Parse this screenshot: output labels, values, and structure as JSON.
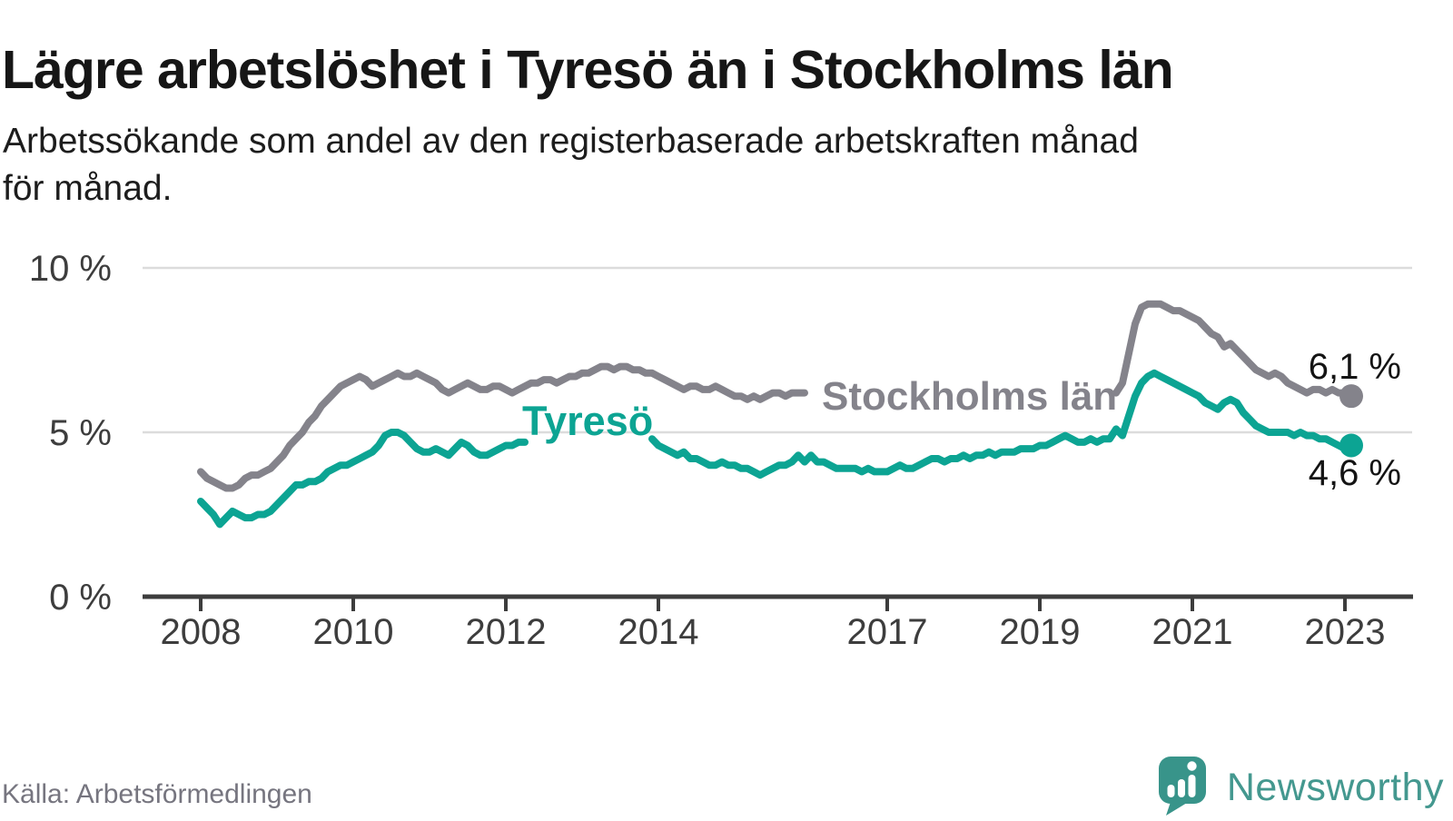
{
  "header": {
    "title": "Lägre arbetslöshet i Tyresö än i Stockholms län",
    "subtitle_line1": "Arbetssökande som andel av den registerbaserade arbetskraften månad",
    "subtitle_line2": "för månad."
  },
  "footer": {
    "source": "Källa: Arbetsförmedlingen",
    "brand_name": "Newsworthy",
    "brand_color": "#44988f",
    "brand_icon": "speech-bubble-bar-chart-icon"
  },
  "colors": {
    "background": "#ffffff",
    "axis": "#3d3d3d",
    "gridline": "#dcdcdc",
    "stockholm_line": "#84838b",
    "tyreso_line": "#0ca493",
    "value_label": "#141414"
  },
  "chart_data": {
    "type": "line",
    "title": "Lägre arbetslöshet i Tyresö än i Stockholms län",
    "xlabel": "",
    "ylabel": "Arbetssökande som andel av den registerbaserade arbetskraften",
    "x_unit": "month",
    "x_start": "2008-01",
    "x_end": "2023-02",
    "ylim": [
      0,
      10.5
    ],
    "grid": "horizontal",
    "legend_position": "inline-labels-on-lines",
    "yticks": [
      {
        "value": 0,
        "label": "0 %"
      },
      {
        "value": 5,
        "label": "5 %"
      },
      {
        "value": 10,
        "label": "10 %"
      }
    ],
    "xticks": [
      {
        "year": 2008,
        "label": "2008"
      },
      {
        "year": 2010,
        "label": "2010"
      },
      {
        "year": 2012,
        "label": "2012"
      },
      {
        "year": 2014,
        "label": "2014"
      },
      {
        "year": 2017,
        "label": "2017"
      },
      {
        "year": 2019,
        "label": "2019"
      },
      {
        "year": 2021,
        "label": "2021"
      },
      {
        "year": 2023,
        "label": "2023"
      }
    ],
    "note": "null values mark segments hidden behind the inline series labels in the original graphic",
    "series": [
      {
        "name": "Stockholms län",
        "color": "#84838b",
        "end_label": "6,1 %",
        "end_value": 6.1,
        "values": [
          3.8,
          3.6,
          3.5,
          3.4,
          3.3,
          3.3,
          3.4,
          3.6,
          3.7,
          3.7,
          3.8,
          3.9,
          4.1,
          4.3,
          4.6,
          4.8,
          5.0,
          5.3,
          5.5,
          5.8,
          6.0,
          6.2,
          6.4,
          6.5,
          6.6,
          6.7,
          6.6,
          6.4,
          6.5,
          6.6,
          6.7,
          6.8,
          6.7,
          6.7,
          6.8,
          6.7,
          6.6,
          6.5,
          6.3,
          6.2,
          6.3,
          6.4,
          6.5,
          6.4,
          6.3,
          6.3,
          6.4,
          6.4,
          6.3,
          6.2,
          6.3,
          6.4,
          6.5,
          6.5,
          6.6,
          6.6,
          6.5,
          6.6,
          6.7,
          6.7,
          6.8,
          6.8,
          6.9,
          7.0,
          7.0,
          6.9,
          7.0,
          7.0,
          6.9,
          6.9,
          6.8,
          6.8,
          6.7,
          6.6,
          6.5,
          6.4,
          6.3,
          6.4,
          6.4,
          6.3,
          6.3,
          6.4,
          6.3,
          6.2,
          6.1,
          6.1,
          6.0,
          6.1,
          6.0,
          6.1,
          6.2,
          6.2,
          6.1,
          6.2,
          6.2,
          6.2,
          null,
          null,
          null,
          null,
          null,
          null,
          null,
          null,
          null,
          null,
          null,
          null,
          null,
          null,
          null,
          null,
          null,
          null,
          null,
          null,
          null,
          null,
          null,
          null,
          null,
          null,
          null,
          null,
          null,
          null,
          null,
          null,
          null,
          null,
          null,
          null,
          null,
          null,
          null,
          null,
          null,
          null,
          null,
          null,
          null,
          null,
          null,
          null,
          6.2,
          6.5,
          7.4,
          8.3,
          8.8,
          8.9,
          8.9,
          8.9,
          8.8,
          8.7,
          8.7,
          8.6,
          8.5,
          8.4,
          8.2,
          8.0,
          7.9,
          7.6,
          7.7,
          7.5,
          7.3,
          7.1,
          6.9,
          6.8,
          6.7,
          6.8,
          6.7,
          6.5,
          6.4,
          6.3,
          6.2,
          6.3,
          6.3,
          6.2,
          6.3,
          6.2,
          6.2,
          6.1
        ]
      },
      {
        "name": "Tyresö",
        "color": "#0ca493",
        "end_label": "4,6 %",
        "end_value": 4.6,
        "values": [
          2.9,
          2.7,
          2.5,
          2.2,
          2.4,
          2.6,
          2.5,
          2.4,
          2.4,
          2.5,
          2.5,
          2.6,
          2.8,
          3.0,
          3.2,
          3.4,
          3.4,
          3.5,
          3.5,
          3.6,
          3.8,
          3.9,
          4.0,
          4.0,
          4.1,
          4.2,
          4.3,
          4.4,
          4.6,
          4.9,
          5.0,
          5.0,
          4.9,
          4.7,
          4.5,
          4.4,
          4.4,
          4.5,
          4.4,
          4.3,
          4.5,
          4.7,
          4.6,
          4.4,
          4.3,
          4.3,
          4.4,
          4.5,
          4.6,
          4.6,
          4.7,
          4.7,
          null,
          null,
          null,
          null,
          null,
          null,
          null,
          null,
          null,
          null,
          null,
          null,
          null,
          null,
          null,
          null,
          null,
          null,
          null,
          4.8,
          4.6,
          4.5,
          4.4,
          4.3,
          4.4,
          4.2,
          4.2,
          4.1,
          4.0,
          4.0,
          4.1,
          4.0,
          4.0,
          3.9,
          3.9,
          3.8,
          3.7,
          3.8,
          3.9,
          4.0,
          4.0,
          4.1,
          4.3,
          4.1,
          4.3,
          4.1,
          4.1,
          4.0,
          3.9,
          3.9,
          3.9,
          3.9,
          3.8,
          3.9,
          3.8,
          3.8,
          3.8,
          3.9,
          4.0,
          3.9,
          3.9,
          4.0,
          4.1,
          4.2,
          4.2,
          4.1,
          4.2,
          4.2,
          4.3,
          4.2,
          4.3,
          4.3,
          4.4,
          4.3,
          4.4,
          4.4,
          4.4,
          4.5,
          4.5,
          4.5,
          4.6,
          4.6,
          4.7,
          4.8,
          4.9,
          4.8,
          4.7,
          4.7,
          4.8,
          4.7,
          4.8,
          4.8,
          5.1,
          4.9,
          5.5,
          6.1,
          6.5,
          6.7,
          6.8,
          6.7,
          6.6,
          6.5,
          6.4,
          6.3,
          6.2,
          6.1,
          5.9,
          5.8,
          5.7,
          5.9,
          6.0,
          5.9,
          5.6,
          5.4,
          5.2,
          5.1,
          5.0,
          5.0,
          5.0,
          5.0,
          4.9,
          5.0,
          4.9,
          4.9,
          4.8,
          4.8,
          4.7,
          4.6,
          4.5,
          4.6
        ]
      }
    ]
  }
}
